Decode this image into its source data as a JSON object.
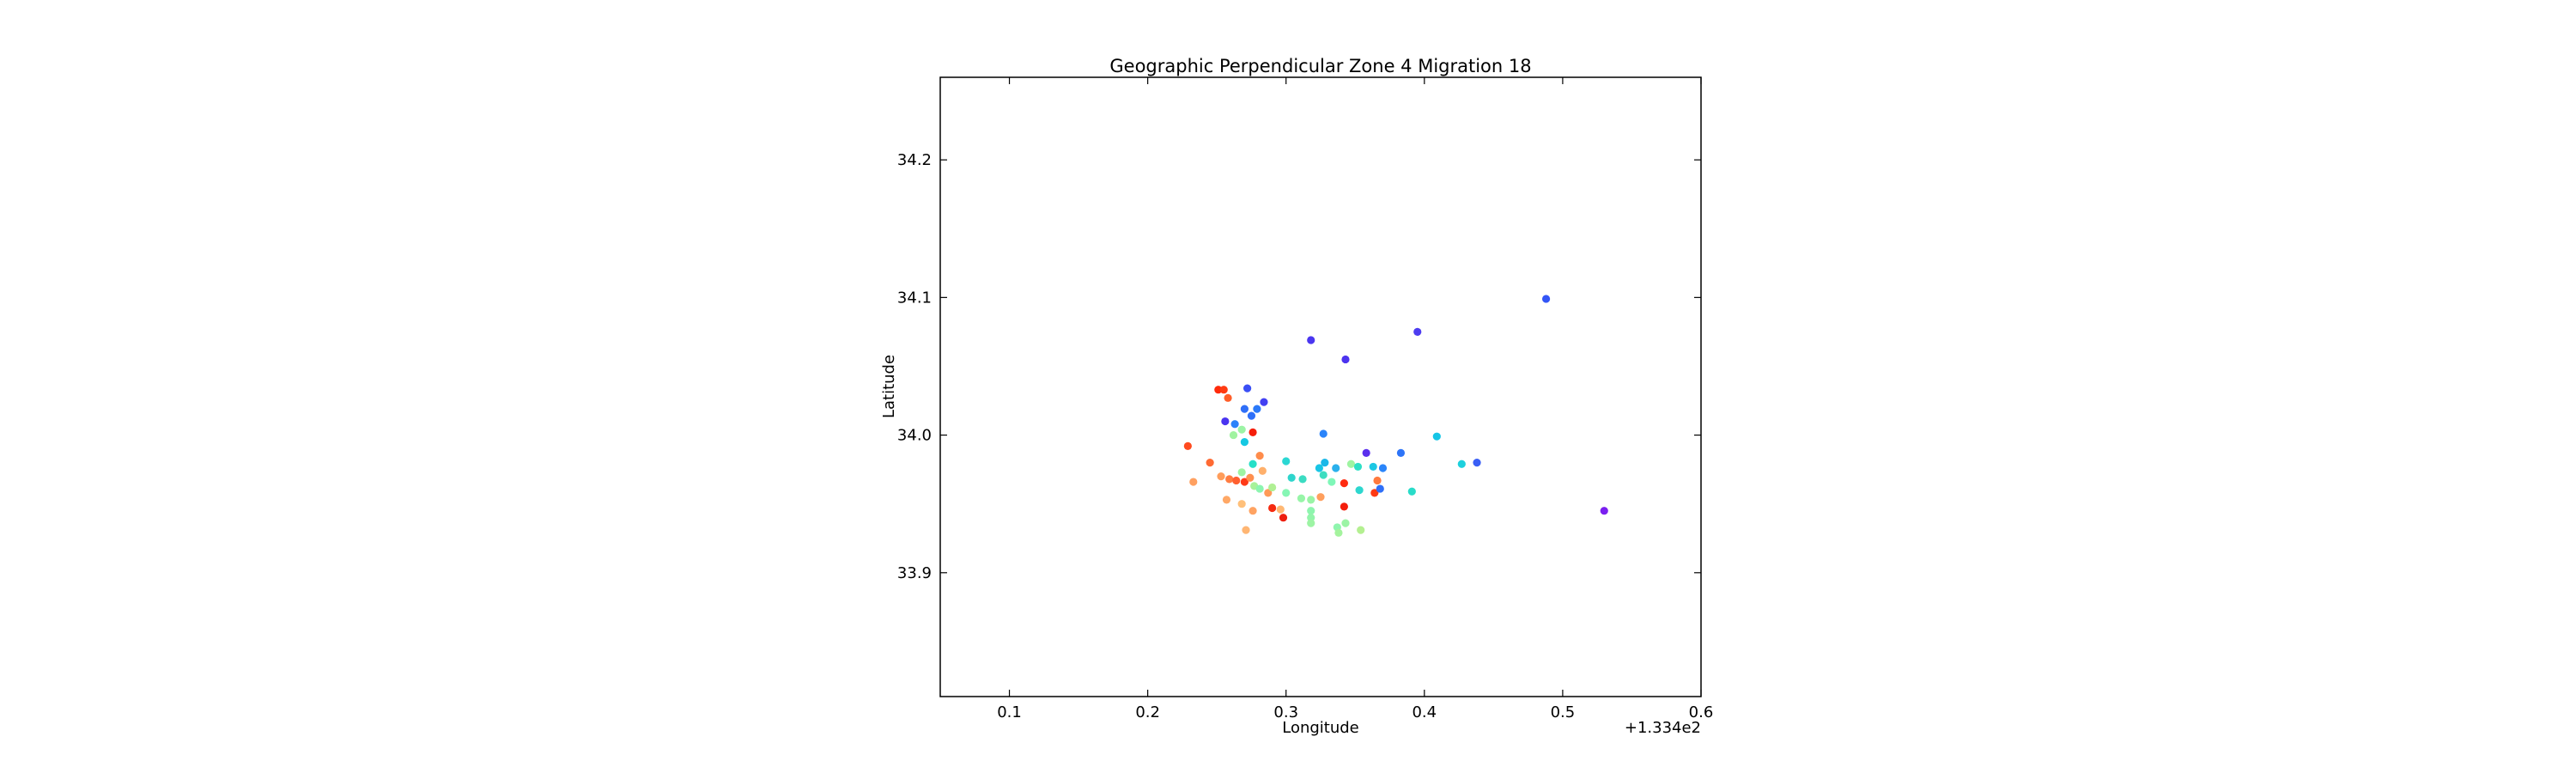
{
  "chart_data": {
    "type": "scatter",
    "title": "Geographic Perpendicular Zone 4 Migration 18",
    "xlabel": "Longitude",
    "ylabel": "Latitude",
    "x_offset_label": "+1.334e2",
    "xlim": [
      0.05,
      0.6
    ],
    "ylim": [
      33.81,
      34.26
    ],
    "x_ticks": [
      {
        "value": 0.1,
        "label": "0.1"
      },
      {
        "value": 0.2,
        "label": "0.2"
      },
      {
        "value": 0.3,
        "label": "0.3"
      },
      {
        "value": 0.4,
        "label": "0.4"
      },
      {
        "value": 0.5,
        "label": "0.5"
      },
      {
        "value": 0.6,
        "label": "0.6"
      }
    ],
    "y_ticks": [
      {
        "value": 33.9,
        "label": "33.9"
      },
      {
        "value": 34.0,
        "label": "34.0"
      },
      {
        "value": 34.1,
        "label": "34.1"
      },
      {
        "value": 34.2,
        "label": "34.2"
      }
    ],
    "grid": false,
    "colormap": "rainbow",
    "points": [
      {
        "x": 0.251,
        "y": 34.033,
        "color": "#ff2a0a"
      },
      {
        "x": 0.255,
        "y": 34.033,
        "color": "#ff3b12"
      },
      {
        "x": 0.258,
        "y": 34.027,
        "color": "#ff5e29"
      },
      {
        "x": 0.272,
        "y": 34.034,
        "color": "#3a4ff5"
      },
      {
        "x": 0.284,
        "y": 34.024,
        "color": "#4240f2"
      },
      {
        "x": 0.27,
        "y": 34.019,
        "color": "#2f6ff8"
      },
      {
        "x": 0.279,
        "y": 34.019,
        "color": "#2b79f9"
      },
      {
        "x": 0.275,
        "y": 34.014,
        "color": "#2e70f9"
      },
      {
        "x": 0.256,
        "y": 34.01,
        "color": "#4a34f0"
      },
      {
        "x": 0.263,
        "y": 34.008,
        "color": "#2a83fa"
      },
      {
        "x": 0.268,
        "y": 34.004,
        "color": "#9cf4a5"
      },
      {
        "x": 0.276,
        "y": 34.002,
        "color": "#f51e0a"
      },
      {
        "x": 0.262,
        "y": 34.0,
        "color": "#a0f3a0"
      },
      {
        "x": 0.27,
        "y": 33.995,
        "color": "#15c8e2"
      },
      {
        "x": 0.229,
        "y": 33.992,
        "color": "#ff4b1f"
      },
      {
        "x": 0.281,
        "y": 33.985,
        "color": "#ff8c4b"
      },
      {
        "x": 0.245,
        "y": 33.98,
        "color": "#ff6a33"
      },
      {
        "x": 0.276,
        "y": 33.979,
        "color": "#26e0c8"
      },
      {
        "x": 0.268,
        "y": 33.973,
        "color": "#9ef4a3"
      },
      {
        "x": 0.283,
        "y": 33.974,
        "color": "#ffb06b"
      },
      {
        "x": 0.253,
        "y": 33.97,
        "color": "#ff9d5b"
      },
      {
        "x": 0.259,
        "y": 33.968,
        "color": "#ff7c41"
      },
      {
        "x": 0.264,
        "y": 33.967,
        "color": "#ff6030"
      },
      {
        "x": 0.27,
        "y": 33.966,
        "color": "#ff3a18"
      },
      {
        "x": 0.274,
        "y": 33.969,
        "color": "#ff8f4f"
      },
      {
        "x": 0.277,
        "y": 33.963,
        "color": "#a8f29a"
      },
      {
        "x": 0.281,
        "y": 33.961,
        "color": "#8cf5b0"
      },
      {
        "x": 0.233,
        "y": 33.966,
        "color": "#ffa060"
      },
      {
        "x": 0.287,
        "y": 33.958,
        "color": "#ff9a57"
      },
      {
        "x": 0.29,
        "y": 33.962,
        "color": "#b0f094"
      },
      {
        "x": 0.257,
        "y": 33.953,
        "color": "#ffa866"
      },
      {
        "x": 0.268,
        "y": 33.95,
        "color": "#ffc07a"
      },
      {
        "x": 0.276,
        "y": 33.945,
        "color": "#ffa362"
      },
      {
        "x": 0.29,
        "y": 33.947,
        "color": "#f52a10"
      },
      {
        "x": 0.296,
        "y": 33.946,
        "color": "#ffb874"
      },
      {
        "x": 0.298,
        "y": 33.94,
        "color": "#ee1e0e"
      },
      {
        "x": 0.271,
        "y": 33.931,
        "color": "#ffb673"
      },
      {
        "x": 0.3,
        "y": 33.981,
        "color": "#2bd7d3"
      },
      {
        "x": 0.304,
        "y": 33.969,
        "color": "#2ed5cc"
      },
      {
        "x": 0.312,
        "y": 33.968,
        "color": "#3bdcc2"
      },
      {
        "x": 0.3,
        "y": 33.958,
        "color": "#86f6b4"
      },
      {
        "x": 0.311,
        "y": 33.954,
        "color": "#97f5a8"
      },
      {
        "x": 0.318,
        "y": 33.953,
        "color": "#9af4a6"
      },
      {
        "x": 0.318,
        "y": 33.945,
        "color": "#8ef5ae"
      },
      {
        "x": 0.318,
        "y": 33.94,
        "color": "#93f5ab"
      },
      {
        "x": 0.318,
        "y": 33.936,
        "color": "#9df4a4"
      },
      {
        "x": 0.324,
        "y": 33.976,
        "color": "#19c5e5"
      },
      {
        "x": 0.328,
        "y": 33.98,
        "color": "#1ab8e8"
      },
      {
        "x": 0.327,
        "y": 33.971,
        "color": "#3dddc0"
      },
      {
        "x": 0.333,
        "y": 33.966,
        "color": "#7ff7b8"
      },
      {
        "x": 0.336,
        "y": 33.976,
        "color": "#2ab0ec"
      },
      {
        "x": 0.325,
        "y": 33.955,
        "color": "#ff9f5d"
      },
      {
        "x": 0.342,
        "y": 33.965,
        "color": "#ff2b10"
      },
      {
        "x": 0.342,
        "y": 33.948,
        "color": "#f41e0c"
      },
      {
        "x": 0.347,
        "y": 33.979,
        "color": "#9ff4a2"
      },
      {
        "x": 0.352,
        "y": 33.977,
        "color": "#2ee0c6"
      },
      {
        "x": 0.353,
        "y": 33.96,
        "color": "#2dd7cf"
      },
      {
        "x": 0.358,
        "y": 33.987,
        "color": "#5a2fed"
      },
      {
        "x": 0.363,
        "y": 33.977,
        "color": "#1cc7e3"
      },
      {
        "x": 0.366,
        "y": 33.967,
        "color": "#ff7a3f"
      },
      {
        "x": 0.364,
        "y": 33.958,
        "color": "#ff3a14"
      },
      {
        "x": 0.368,
        "y": 33.961,
        "color": "#2f6ff8"
      },
      {
        "x": 0.37,
        "y": 33.976,
        "color": "#2a85fa"
      },
      {
        "x": 0.343,
        "y": 33.936,
        "color": "#9bf4a5"
      },
      {
        "x": 0.337,
        "y": 33.933,
        "color": "#8ff5ae"
      },
      {
        "x": 0.338,
        "y": 33.929,
        "color": "#a4f39d"
      },
      {
        "x": 0.354,
        "y": 33.931,
        "color": "#b4f091"
      },
      {
        "x": 0.327,
        "y": 34.001,
        "color": "#2a84fa"
      },
      {
        "x": 0.318,
        "y": 34.069,
        "color": "#4a36f0"
      },
      {
        "x": 0.343,
        "y": 34.055,
        "color": "#4c33ef"
      },
      {
        "x": 0.383,
        "y": 33.987,
        "color": "#2d74f8"
      },
      {
        "x": 0.391,
        "y": 33.959,
        "color": "#29dcc9"
      },
      {
        "x": 0.395,
        "y": 34.075,
        "color": "#4d3cf0"
      },
      {
        "x": 0.409,
        "y": 33.999,
        "color": "#15c5e6"
      },
      {
        "x": 0.427,
        "y": 33.979,
        "color": "#1dd0dd"
      },
      {
        "x": 0.438,
        "y": 33.98,
        "color": "#3a5ff5"
      },
      {
        "x": 0.488,
        "y": 34.099,
        "color": "#3355f6"
      },
      {
        "x": 0.53,
        "y": 33.945,
        "color": "#7a1ff0"
      }
    ]
  }
}
